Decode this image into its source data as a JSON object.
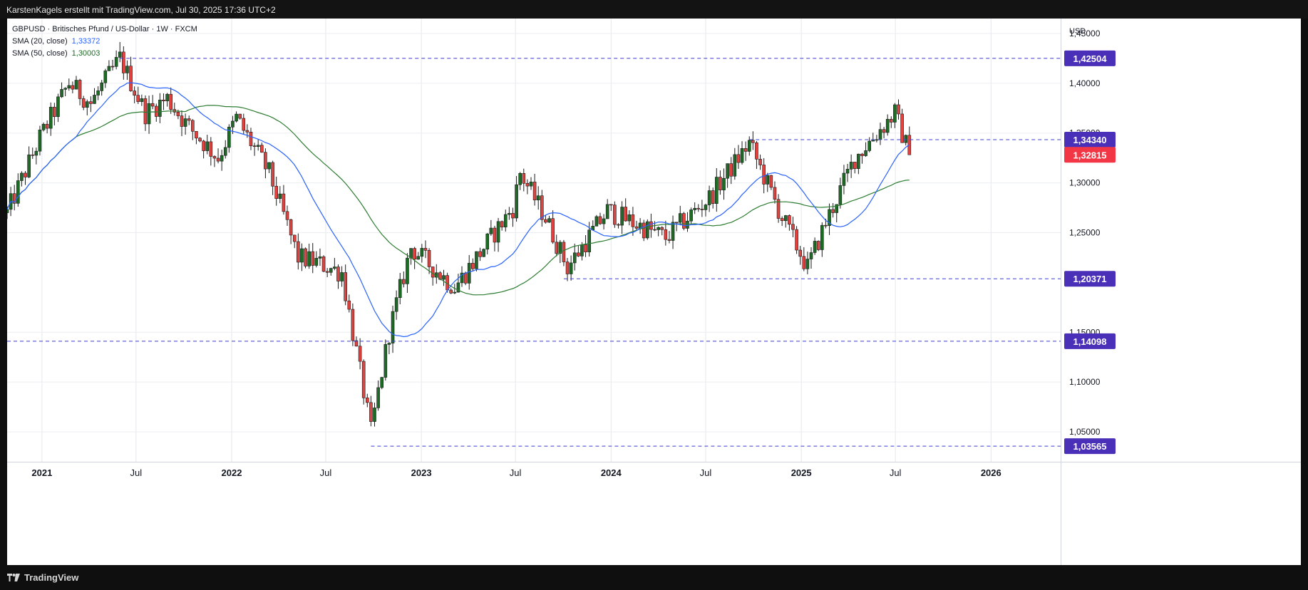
{
  "header": {
    "credit": "KarstenKagels erstellt mit TradingView.com, Jul 30, 2025 17:36 UTC+2"
  },
  "legend": {
    "symbol": "GBPUSD · Britisches Pfund / US-Dollar · 1W · FXCM",
    "sma20_label": "SMA (20, close)",
    "sma20_value": "1,33372",
    "sma50_label": "SMA (50, close)",
    "sma50_value": "1,30003"
  },
  "footer": {
    "brand": "TradingView"
  },
  "colors": {
    "up": "#1e6b25",
    "down": "#e0433f",
    "sma20": "#2962ff",
    "sma50": "#2e7d32",
    "level_line": "#3f3fd0",
    "level_badge": "#4a2fb8",
    "current_badge": "#f23645"
  },
  "chart_data": {
    "type": "candlestick",
    "instrument": "GBPUSD",
    "timeframe": "1W",
    "currency_label": "USD",
    "x_labels": [
      "2021",
      "Jul",
      "2022",
      "Jul",
      "2023",
      "Jul",
      "2024",
      "Jul",
      "2025",
      "Jul",
      "2026"
    ],
    "x_label_dates": [
      "2021-01-01",
      "2021-07-01",
      "2022-01-01",
      "2022-07-01",
      "2023-01-01",
      "2023-07-01",
      "2024-01-01",
      "2024-07-01",
      "2025-01-01",
      "2025-07-01",
      "2026-01-01"
    ],
    "x_range": [
      "2020-10-26",
      "2026-05-15"
    ],
    "y_ticks": [
      "1,05000",
      "1,10000",
      "1,15000",
      "1,25000",
      "1,30000",
      "1,35000",
      "1,40000",
      "1,45000"
    ],
    "y_tick_values": [
      1.05,
      1.1,
      1.15,
      1.25,
      1.3,
      1.35,
      1.4,
      1.45
    ],
    "y_range": [
      1.02,
      1.465
    ],
    "grid": true,
    "price_anchors": [
      [
        "2020-10-26",
        1.27
      ],
      [
        "2020-12-28",
        1.345
      ],
      [
        "2021-02-22",
        1.4
      ],
      [
        "2021-04-05",
        1.38
      ],
      [
        "2021-05-31",
        1.425
      ],
      [
        "2021-07-19",
        1.37
      ],
      [
        "2021-08-30",
        1.385
      ],
      [
        "2021-10-04",
        1.36
      ],
      [
        "2021-12-06",
        1.325
      ],
      [
        "2022-01-10",
        1.365
      ],
      [
        "2022-03-14",
        1.31
      ],
      [
        "2022-05-09",
        1.225
      ],
      [
        "2022-06-13",
        1.22
      ],
      [
        "2022-08-01",
        1.21
      ],
      [
        "2022-09-26",
        1.05
      ],
      [
        "2022-10-31",
        1.15
      ],
      [
        "2022-12-12",
        1.235
      ],
      [
        "2023-03-06",
        1.195
      ],
      [
        "2023-06-26",
        1.275
      ],
      [
        "2023-07-10",
        1.31
      ],
      [
        "2023-08-28",
        1.265
      ],
      [
        "2023-10-09",
        1.215
      ],
      [
        "2023-12-25",
        1.272
      ],
      [
        "2024-04-15",
        1.245
      ],
      [
        "2024-07-08",
        1.285
      ],
      [
        "2024-09-23",
        1.34
      ],
      [
        "2024-11-25",
        1.265
      ],
      [
        "2025-01-13",
        1.215
      ],
      [
        "2025-02-17",
        1.26
      ],
      [
        "2025-04-14",
        1.325
      ],
      [
        "2025-06-30",
        1.37
      ],
      [
        "2025-07-28",
        1.3282
      ]
    ],
    "levels": [
      {
        "value": 1.42504,
        "label": "1,42504",
        "from": "2021-05-31"
      },
      {
        "value": 1.3434,
        "label": "1,34340",
        "from": "2024-09-23"
      },
      {
        "value": 1.20371,
        "label": "1,20371",
        "from": "2023-10-02"
      },
      {
        "value": 1.14098,
        "label": "1,14098",
        "from": "2020-10-26"
      },
      {
        "value": 1.03565,
        "label": "1,03565",
        "from": "2022-09-26"
      }
    ],
    "current_price": {
      "value": 1.32815,
      "label": "1,32815"
    },
    "series": [
      {
        "name": "SMA (20, close)",
        "last": 1.33372
      },
      {
        "name": "SMA (50, close)",
        "last": 1.30003
      }
    ]
  }
}
